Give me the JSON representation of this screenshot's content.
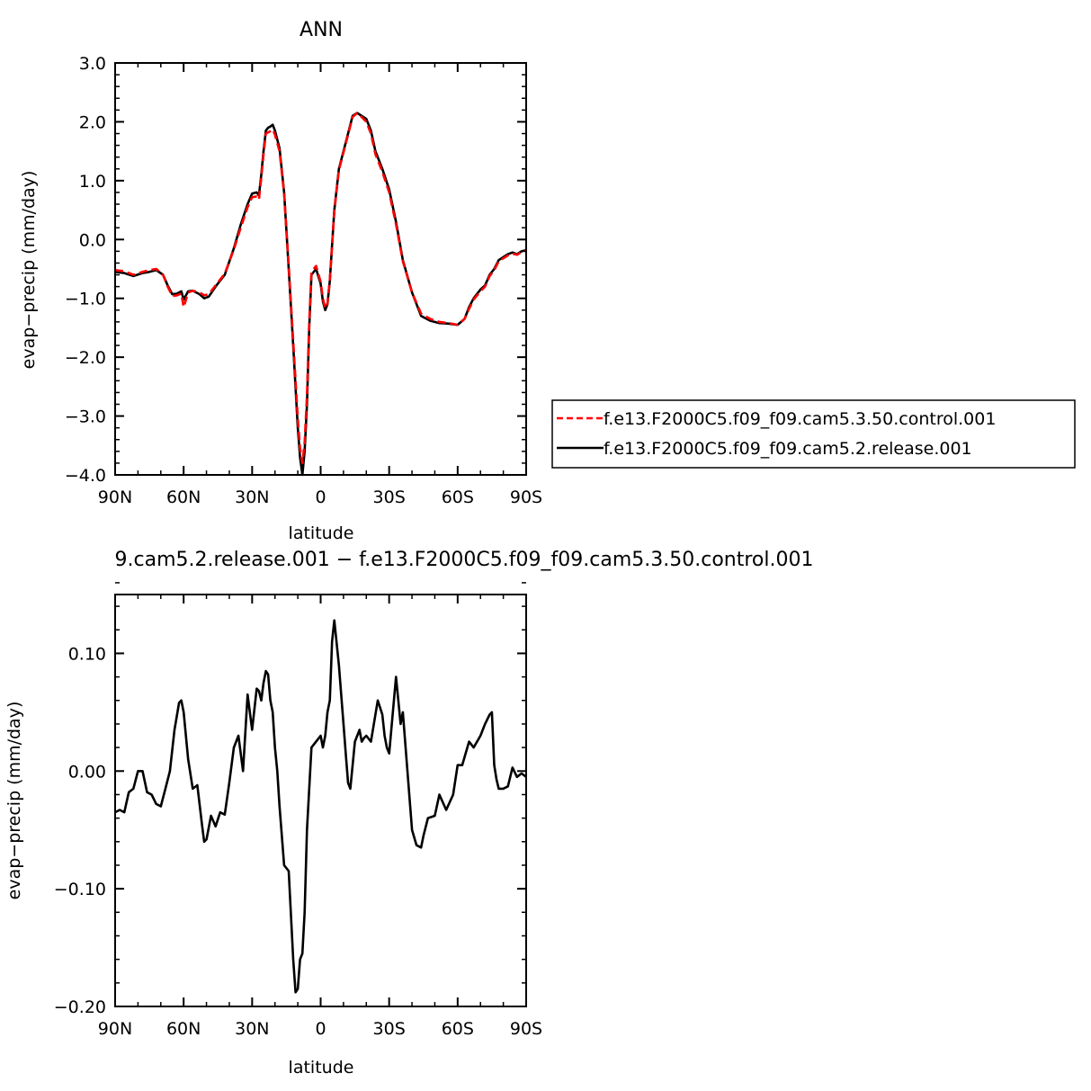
{
  "chart_data": [
    {
      "type": "line",
      "title": "ANN",
      "xlabel": "latitude",
      "ylabel": "evap−precip (mm/day)",
      "xlim": [
        90,
        -90
      ],
      "ylim": [
        -4.0,
        3.0
      ],
      "x_ticks": [
        90,
        60,
        30,
        0,
        -30,
        -60,
        -90
      ],
      "x_tick_labels": [
        "90N",
        "60N",
        "30N",
        "0",
        "30S",
        "60S",
        "90S"
      ],
      "y_ticks": [
        3,
        2,
        1,
        0,
        -1,
        -2,
        -3,
        -4
      ],
      "y_tick_labels": [
        "3.0",
        "2.0",
        "1.0",
        "0.0",
        "−1.0",
        "−2.0",
        "−3.0",
        "−4.0"
      ],
      "grid": false,
      "legend_position": "right",
      "series": [
        {
          "name": "f.e13.F2000C5.f09_f09.cam5.2.release.001",
          "color": "#000000",
          "dash": "solid",
          "x": [
            90,
            86,
            82,
            78,
            75,
            72,
            69,
            67,
            65,
            63,
            61,
            60,
            58,
            56,
            53,
            51,
            49,
            46,
            42,
            38,
            35,
            32,
            30,
            28,
            27,
            26,
            25,
            24,
            23,
            22,
            21,
            20,
            18,
            16,
            14,
            12,
            10,
            9,
            8,
            7,
            6,
            5,
            4,
            2,
            0,
            -1,
            -2,
            -3,
            -4,
            -5,
            -6,
            -8,
            -10,
            -12,
            -14,
            -16,
            -18,
            -20,
            -22,
            -24,
            -27,
            -30,
            -33,
            -36,
            -40,
            -44,
            -48,
            -52,
            -56,
            -60,
            -63,
            -65,
            -67,
            -70,
            -72,
            -74,
            -76,
            -78,
            -80,
            -82,
            -84,
            -86,
            -88,
            -90
          ],
          "y": [
            -0.55,
            -0.57,
            -0.62,
            -0.57,
            -0.55,
            -0.52,
            -0.6,
            -0.78,
            -0.93,
            -0.92,
            -0.88,
            -1.02,
            -0.88,
            -0.87,
            -0.93,
            -1.0,
            -0.97,
            -0.8,
            -0.6,
            -0.15,
            0.25,
            0.6,
            0.78,
            0.8,
            0.75,
            1.1,
            1.5,
            1.85,
            1.9,
            1.92,
            1.95,
            1.85,
            1.55,
            0.8,
            -0.5,
            -1.8,
            -3.2,
            -3.7,
            -4.0,
            -3.6,
            -2.8,
            -1.5,
            -0.6,
            -0.5,
            -0.75,
            -1.05,
            -1.2,
            -1.1,
            -0.7,
            -0.1,
            0.5,
            1.2,
            1.5,
            1.8,
            2.1,
            2.15,
            2.1,
            2.05,
            1.85,
            1.5,
            1.2,
            0.85,
            0.3,
            -0.35,
            -0.9,
            -1.3,
            -1.38,
            -1.42,
            -1.43,
            -1.45,
            -1.35,
            -1.15,
            -1.0,
            -0.85,
            -0.78,
            -0.6,
            -0.5,
            -0.35,
            -0.3,
            -0.25,
            -0.22,
            -0.25,
            -0.2,
            -0.18
          ]
        },
        {
          "name": "f.e13.F2000C5.f09_f09.cam5.3.50.control.001",
          "color": "#ff0000",
          "dash": "dashed",
          "x": [
            90,
            86,
            82,
            78,
            75,
            72,
            69,
            67,
            65,
            63,
            61,
            60,
            58,
            56,
            53,
            51,
            49,
            46,
            42,
            38,
            35,
            32,
            30,
            28,
            27,
            26,
            25,
            24,
            23,
            22,
            21,
            20,
            18,
            16,
            14,
            12,
            10,
            9,
            8,
            7,
            6,
            5,
            4,
            2,
            0,
            -1,
            -2,
            -3,
            -4,
            -5,
            -6,
            -8,
            -10,
            -12,
            -14,
            -16,
            -18,
            -20,
            -22,
            -24,
            -27,
            -30,
            -33,
            -36,
            -40,
            -44,
            -48,
            -52,
            -56,
            -60,
            -63,
            -65,
            -67,
            -70,
            -72,
            -74,
            -76,
            -78,
            -80,
            -82,
            -84,
            -86,
            -88,
            -90
          ],
          "y": [
            -0.52,
            -0.54,
            -0.6,
            -0.55,
            -0.52,
            -0.5,
            -0.6,
            -0.8,
            -0.96,
            -0.95,
            -0.92,
            -1.15,
            -0.9,
            -0.87,
            -0.9,
            -0.95,
            -0.93,
            -0.78,
            -0.58,
            -0.17,
            0.2,
            0.55,
            0.72,
            0.73,
            0.68,
            1.05,
            1.45,
            1.8,
            1.82,
            1.84,
            1.87,
            1.78,
            1.5,
            0.78,
            -0.45,
            -1.72,
            -3.05,
            -3.55,
            -3.8,
            -3.45,
            -2.65,
            -1.4,
            -0.55,
            -0.45,
            -0.72,
            -1.0,
            -1.17,
            -1.08,
            -0.7,
            -0.1,
            0.48,
            1.18,
            1.48,
            1.78,
            2.08,
            2.15,
            2.08,
            2.0,
            1.8,
            1.45,
            1.15,
            0.8,
            0.26,
            -0.37,
            -0.9,
            -1.26,
            -1.35,
            -1.4,
            -1.42,
            -1.45,
            -1.35,
            -1.18,
            -1.02,
            -0.88,
            -0.8,
            -0.62,
            -0.52,
            -0.37,
            -0.32,
            -0.27,
            -0.24,
            -0.26,
            -0.21,
            -0.19
          ]
        }
      ]
    },
    {
      "type": "line",
      "title": "9.cam5.2.release.001  −  f.e13.F2000C5.f09_f09.cam5.3.50.control.001",
      "xlabel": "latitude",
      "ylabel": "evap−precip (mm/day)",
      "xlim": [
        90,
        -90
      ],
      "ylim": [
        -0.2,
        0.15
      ],
      "x_ticks": [
        90,
        60,
        30,
        0,
        -30,
        -60,
        -90
      ],
      "x_tick_labels": [
        "90N",
        "60N",
        "30N",
        "0",
        "30S",
        "60S",
        "90S"
      ],
      "y_ticks": [
        0.1,
        0.0,
        -0.1,
        -0.2
      ],
      "y_tick_labels": [
        "0.10",
        "0.00",
        "−0.10",
        "−0.20"
      ],
      "grid": false,
      "series": [
        {
          "color": "#000000",
          "dash": "solid",
          "x": [
            90,
            88,
            86,
            84,
            82,
            80,
            78,
            76,
            74,
            72,
            70,
            68,
            66,
            64,
            62,
            61,
            60,
            58,
            56,
            54,
            52,
            51,
            50,
            48,
            46,
            44,
            42,
            40,
            38,
            36,
            34,
            32,
            30,
            28,
            27,
            26,
            25,
            24,
            23,
            22,
            21,
            20,
            19,
            18,
            16,
            14,
            12,
            11,
            10,
            9,
            8,
            7,
            6,
            5,
            4,
            2,
            0,
            -1,
            -2,
            -3,
            -4,
            -5,
            -6,
            -8,
            -10,
            -11,
            -12,
            -13,
            -15,
            -17,
            -18,
            -19,
            -20,
            -22,
            -25,
            -27,
            -28,
            -29,
            -30,
            -33,
            -35,
            -36,
            -38,
            -40,
            -42,
            -44,
            -45,
            -47,
            -50,
            -52,
            -55,
            -58,
            -60,
            -62,
            -65,
            -67,
            -70,
            -72,
            -74,
            -75,
            -76,
            -77,
            -78,
            -80,
            -82,
            -84,
            -86,
            -88,
            -90
          ],
          "y": [
            -0.035,
            -0.033,
            -0.035,
            -0.018,
            -0.015,
            0.0,
            0.0,
            -0.018,
            -0.02,
            -0.028,
            -0.03,
            -0.015,
            0.0,
            0.035,
            0.058,
            0.06,
            0.05,
            0.01,
            -0.015,
            -0.012,
            -0.045,
            -0.06,
            -0.058,
            -0.038,
            -0.047,
            -0.035,
            -0.037,
            -0.01,
            0.02,
            0.03,
            0.0,
            0.065,
            0.035,
            0.07,
            0.068,
            0.06,
            0.075,
            0.085,
            0.082,
            0.06,
            0.05,
            0.02,
            0.0,
            -0.03,
            -0.08,
            -0.085,
            -0.16,
            -0.188,
            -0.185,
            -0.16,
            -0.155,
            -0.12,
            -0.05,
            -0.015,
            0.02,
            0.025,
            0.03,
            0.02,
            0.03,
            0.05,
            0.06,
            0.11,
            0.128,
            0.09,
            0.04,
            0.015,
            -0.01,
            -0.015,
            0.025,
            0.035,
            0.025,
            0.028,
            0.03,
            0.025,
            0.06,
            0.048,
            0.03,
            0.02,
            0.015,
            0.08,
            0.04,
            0.05,
            0.0,
            -0.05,
            -0.063,
            -0.065,
            -0.055,
            -0.04,
            -0.038,
            -0.02,
            -0.033,
            -0.02,
            0.005,
            0.005,
            0.025,
            0.02,
            0.03,
            0.04,
            0.048,
            0.05,
            0.005,
            -0.007,
            -0.015,
            -0.015,
            -0.013,
            0.003,
            -0.005,
            -0.002,
            -0.005
          ]
        }
      ]
    }
  ]
}
